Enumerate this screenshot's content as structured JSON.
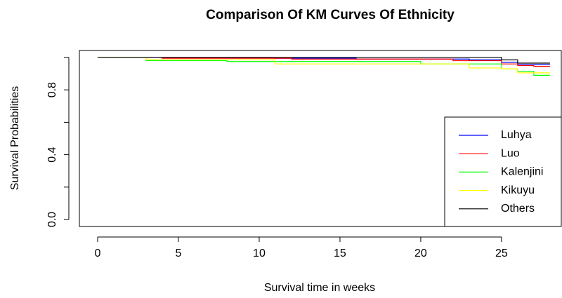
{
  "chart_data": {
    "type": "step",
    "title": "Comparison Of KM Curves Of Ethnicity",
    "xlabel": "Survival time in weeks",
    "ylabel": "Survival Probabilities",
    "xlim": [
      -1.13,
      28.7
    ],
    "ylim": [
      -0.043,
      1.043
    ],
    "xticks": [
      0,
      5,
      10,
      15,
      20,
      25
    ],
    "yticks": [
      {
        "value": 0,
        "label": "0.0"
      },
      {
        "value": 0.4,
        "label": "0.4"
      },
      {
        "value": 0.8,
        "label": "0.8"
      }
    ],
    "yminor": [
      0.2,
      0.6,
      1
    ],
    "legend": "right",
    "series": [
      {
        "name": "Luhya",
        "color": "#0000ff",
        "x": [
          0,
          11,
          16,
          23,
          25,
          26,
          28
        ],
        "values": [
          1,
          0.995,
          0.99,
          0.985,
          0.97,
          0.955,
          0.955
        ]
      },
      {
        "name": "Luo",
        "color": "#ff0000",
        "x": [
          0,
          4,
          12,
          22,
          25,
          26,
          27,
          28
        ],
        "values": [
          1,
          0.995,
          0.99,
          0.98,
          0.96,
          0.95,
          0.945,
          0.945
        ]
      },
      {
        "name": "Kalenjini",
        "color": "#00ff00",
        "x": [
          0,
          3,
          8,
          20,
          25,
          26,
          27,
          28
        ],
        "values": [
          1,
          0.98,
          0.975,
          0.96,
          0.93,
          0.915,
          0.89,
          0.89
        ]
      },
      {
        "name": "Kikuyu",
        "color": "#ffff00",
        "x": [
          0,
          3,
          11,
          23,
          25,
          26,
          28
        ],
        "values": [
          1,
          0.985,
          0.96,
          0.935,
          0.93,
          0.905,
          0.905
        ]
      },
      {
        "name": "Others",
        "color": "#000000",
        "x": [
          0,
          25,
          26,
          28
        ],
        "values": [
          1,
          0.985,
          0.965,
          0.965
        ]
      }
    ]
  }
}
